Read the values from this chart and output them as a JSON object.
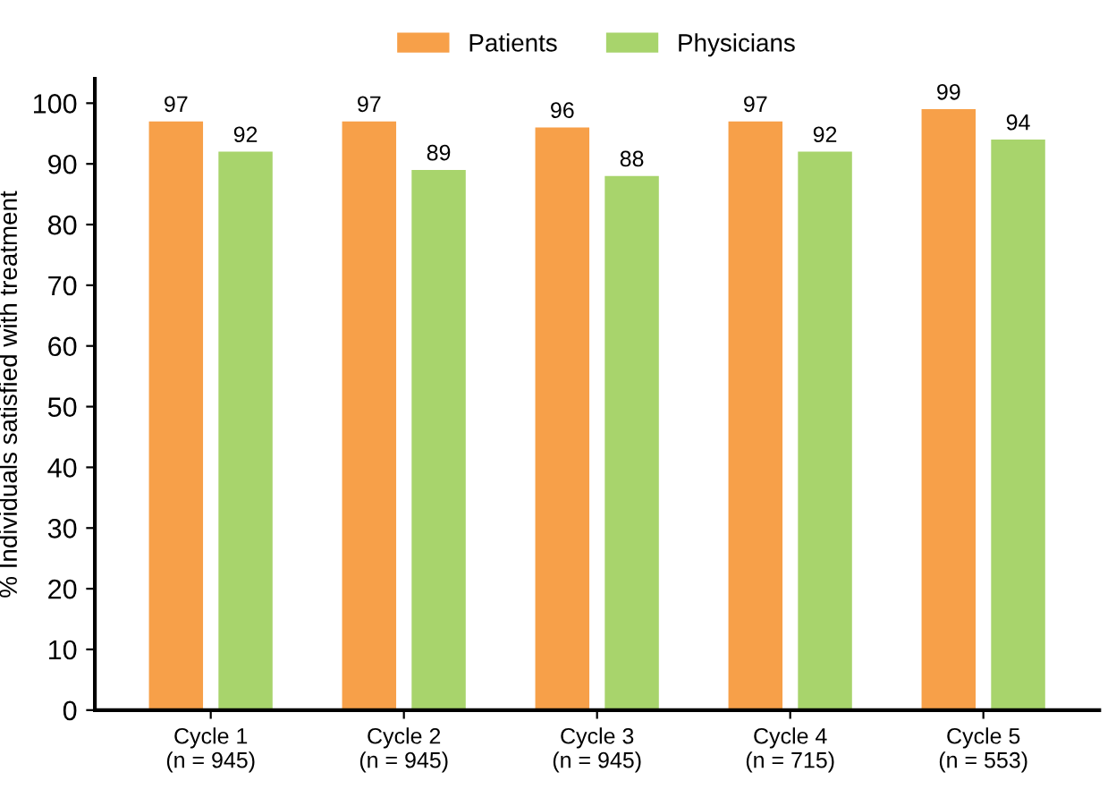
{
  "chart_data": {
    "type": "bar",
    "ylabel": "% Individuals satisfied with treatment",
    "categories": [
      "Cycle 1\n(n = 945)",
      "Cycle 2\n(n = 945)",
      "Cycle 3\n(n = 945)",
      "Cycle 4\n(n = 715)",
      "Cycle 5\n(n = 553)"
    ],
    "series": [
      {
        "name": "Patients",
        "color": "#f7a049",
        "values": [
          97,
          97,
          96,
          97,
          99
        ]
      },
      {
        "name": "Physicians",
        "color": "#a8d46c",
        "values": [
          92,
          89,
          88,
          92,
          94
        ]
      }
    ],
    "ylim": [
      0,
      104
    ],
    "yticks": [
      0,
      10,
      20,
      30,
      40,
      50,
      60,
      70,
      80,
      90,
      100
    ],
    "data_labels": true,
    "legend": "top",
    "grid": false
  }
}
